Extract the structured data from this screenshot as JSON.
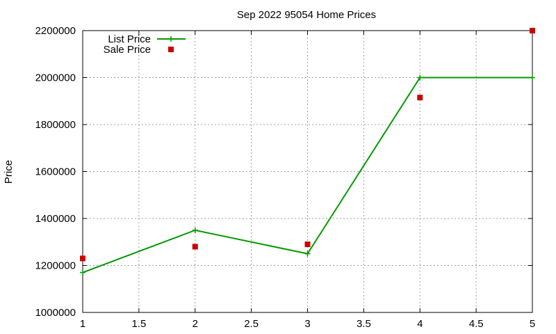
{
  "chart_data": {
    "type": "line",
    "title": "Sep 2022 95054 Home Prices",
    "xlabel": "",
    "ylabel": "Price",
    "xlim": [
      1,
      5
    ],
    "ylim": [
      1000000,
      2200000
    ],
    "x_ticks": [
      "1",
      "1.5",
      "2",
      "2.5",
      "3",
      "3.5",
      "4",
      "4.5",
      "5"
    ],
    "y_ticks": [
      "1000000",
      "1200000",
      "1400000",
      "1600000",
      "1800000",
      "2000000",
      "2200000"
    ],
    "grid": true,
    "legend_position": "top-left",
    "series": [
      {
        "name": "List Price",
        "style": "line+cross",
        "color": "#009900",
        "x": [
          1,
          2,
          3,
          4,
          5
        ],
        "y": [
          1170000,
          1350000,
          1250000,
          2000000,
          2000000
        ]
      },
      {
        "name": "Sale Price",
        "style": "square-points",
        "color": "#cc0000",
        "x": [
          1,
          2,
          3,
          4,
          5
        ],
        "y": [
          1230000,
          1280000,
          1290000,
          1915000,
          2200000
        ]
      }
    ]
  }
}
